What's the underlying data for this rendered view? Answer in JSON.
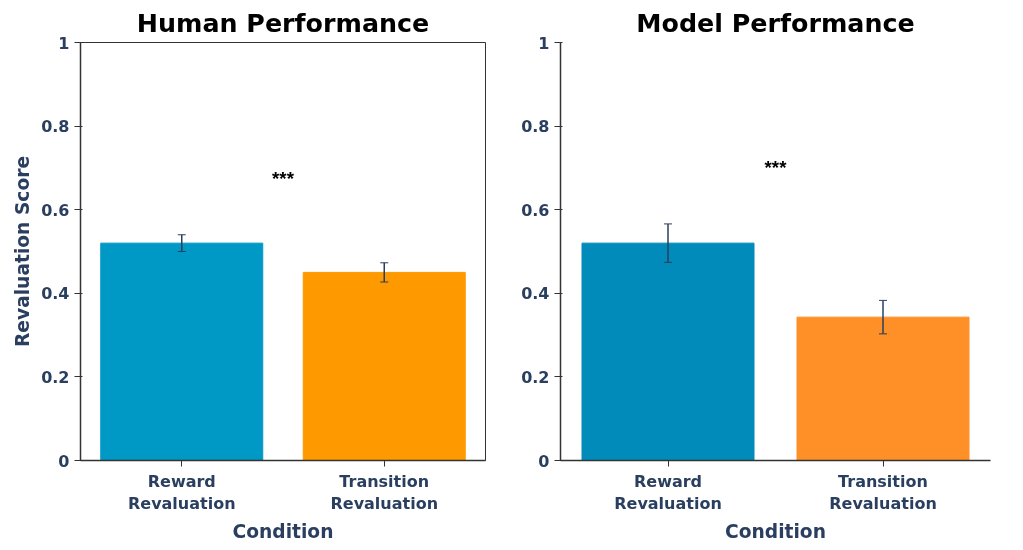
{
  "chart_data": [
    {
      "type": "bar",
      "title": "Human Performance",
      "xlabel": "Condition",
      "ylabel": "Revaluation Score",
      "categories": [
        "Reward\nRevaluation",
        "Transition\nRevaluation"
      ],
      "values": [
        0.52,
        0.45
      ],
      "colors": [
        "#0099c6",
        "#ff9900"
      ],
      "errors": [
        0.02,
        0.023
      ],
      "ylim": [
        0,
        1
      ],
      "yticks": [
        0,
        0.2,
        0.4,
        0.6,
        0.8,
        1
      ],
      "grid": false,
      "annotations": [
        "***"
      ]
    },
    {
      "type": "bar",
      "title": "Model Performance",
      "xlabel": "Condition",
      "categories": [
        "Reward\nRevaluation",
        "Transition\nRevaluation"
      ],
      "values": [
        0.52,
        0.343
      ],
      "colors": [
        "#008bba",
        "#ff9028"
      ],
      "errors": [
        0.046,
        0.04
      ],
      "ylim": [
        0,
        1
      ],
      "yticks": [
        0,
        0.2,
        0.4,
        0.6,
        0.8,
        1
      ],
      "grid": false,
      "annotations": [
        "***"
      ]
    }
  ]
}
